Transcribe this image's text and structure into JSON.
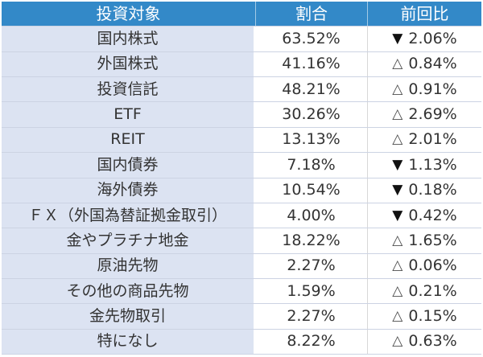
{
  "chart_data": {
    "type": "table",
    "title": "",
    "columns": [
      "投資対象",
      "割合",
      "前回比"
    ],
    "rows": [
      {
        "target": "国内株式",
        "ratio": "63.52%",
        "symbol": "▼",
        "change": "2.06%",
        "direction": "down",
        "ratio_value": 63.52,
        "change_value": -2.06
      },
      {
        "target": "外国株式",
        "ratio": "41.16%",
        "symbol": "△",
        "change": "0.84%",
        "direction": "up",
        "ratio_value": 41.16,
        "change_value": 0.84
      },
      {
        "target": "投資信託",
        "ratio": "48.21%",
        "symbol": "△",
        "change": "0.91%",
        "direction": "up",
        "ratio_value": 48.21,
        "change_value": 0.91
      },
      {
        "target": "ETF",
        "ratio": "30.26%",
        "symbol": "△",
        "change": "2.69%",
        "direction": "up",
        "ratio_value": 30.26,
        "change_value": 2.69
      },
      {
        "target": "REIT",
        "ratio": "13.13%",
        "symbol": "△",
        "change": "2.01%",
        "direction": "up",
        "ratio_value": 13.13,
        "change_value": 2.01
      },
      {
        "target": "国内債券",
        "ratio": "7.18%",
        "symbol": "▼",
        "change": "1.13%",
        "direction": "down",
        "ratio_value": 7.18,
        "change_value": -1.13
      },
      {
        "target": "海外債券",
        "ratio": "10.54%",
        "symbol": "▼",
        "change": "0.18%",
        "direction": "down",
        "ratio_value": 10.54,
        "change_value": -0.18
      },
      {
        "target": "ＦＸ（外国為替証拠金取引）",
        "ratio": "4.00%",
        "symbol": "▼",
        "change": "0.42%",
        "direction": "down",
        "ratio_value": 4.0,
        "change_value": -0.42
      },
      {
        "target": "金やプラチナ地金",
        "ratio": "18.22%",
        "symbol": "△",
        "change": "1.65%",
        "direction": "up",
        "ratio_value": 18.22,
        "change_value": 1.65
      },
      {
        "target": "原油先物",
        "ratio": "2.27%",
        "symbol": "△",
        "change": "0.06%",
        "direction": "up",
        "ratio_value": 2.27,
        "change_value": 0.06
      },
      {
        "target": "その他の商品先物",
        "ratio": "1.59%",
        "symbol": "△",
        "change": "0.21%",
        "direction": "up",
        "ratio_value": 1.59,
        "change_value": 0.21
      },
      {
        "target": "金先物取引",
        "ratio": "2.27%",
        "symbol": "△",
        "change": "0.15%",
        "direction": "up",
        "ratio_value": 2.27,
        "change_value": 0.15
      },
      {
        "target": "特になし",
        "ratio": "8.22%",
        "symbol": "△",
        "change": "0.63%",
        "direction": "up",
        "ratio_value": 8.22,
        "change_value": 0.63
      }
    ]
  },
  "colors": {
    "header_bg": "#3389c8",
    "header_text": "#ffffff",
    "row_bg": "#dce3f2",
    "value_bg": "#ffffff",
    "sep_color": "#ccd3e3",
    "col_line": "#d8d8d8",
    "text_color": "#333333"
  }
}
